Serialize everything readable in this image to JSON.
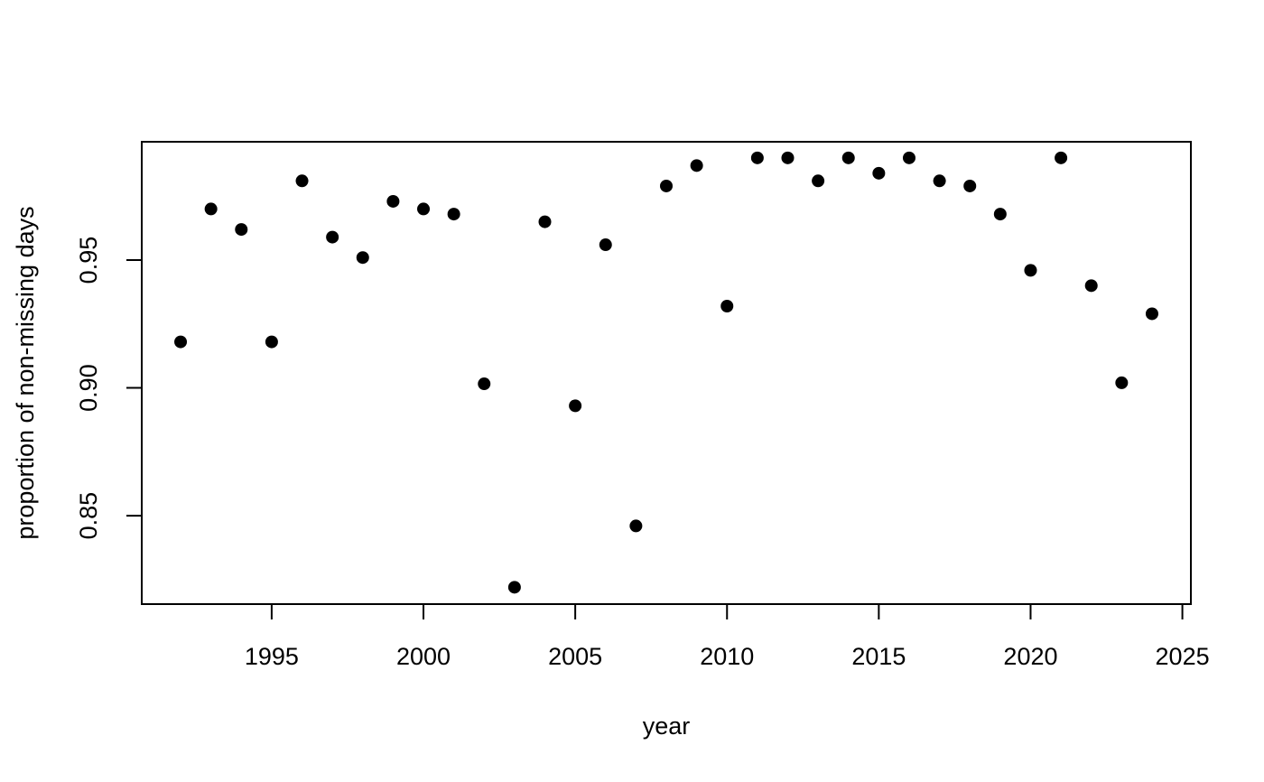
{
  "chart_data": {
    "type": "scatter",
    "xlabel": "year",
    "ylabel": "proportion of non-missing days",
    "x": [
      1992,
      1993,
      1994,
      1995,
      1996,
      1997,
      1998,
      1999,
      2000,
      2001,
      2002,
      2003,
      2004,
      2005,
      2006,
      2007,
      2008,
      2009,
      2010,
      2011,
      2012,
      2013,
      2014,
      2015,
      2016,
      2017,
      2018,
      2019,
      2020,
      2021,
      2022,
      2023,
      2024
    ],
    "values": [
      0.918,
      0.97,
      0.962,
      0.918,
      0.981,
      0.959,
      0.951,
      0.973,
      0.97,
      0.968,
      0.9016,
      0.822,
      0.965,
      0.893,
      0.956,
      0.846,
      0.979,
      0.987,
      0.932,
      0.99,
      0.99,
      0.981,
      0.99,
      0.984,
      0.99,
      0.981,
      0.979,
      0.968,
      0.946,
      0.99,
      0.94,
      0.902,
      0.929
    ],
    "color": "#000000",
    "xlim": [
      1990.72,
      2025.28
    ],
    "xticks": [
      1995,
      2000,
      2005,
      2010,
      2015,
      2020,
      2025
    ],
    "ylim": [
      0.8154,
      0.9963
    ],
    "yticks": [
      0.85,
      {
        "value": 0.9,
        "label": "0.90"
      },
      0.95
    ]
  }
}
